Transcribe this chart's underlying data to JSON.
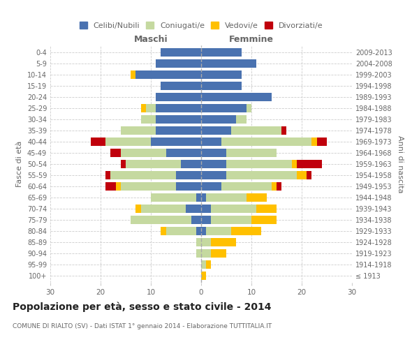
{
  "age_groups": [
    "100+",
    "95-99",
    "90-94",
    "85-89",
    "80-84",
    "75-79",
    "70-74",
    "65-69",
    "60-64",
    "55-59",
    "50-54",
    "45-49",
    "40-44",
    "35-39",
    "30-34",
    "25-29",
    "20-24",
    "15-19",
    "10-14",
    "5-9",
    "0-4"
  ],
  "birth_years": [
    "≤ 1913",
    "1914-1918",
    "1919-1923",
    "1924-1928",
    "1929-1933",
    "1934-1938",
    "1939-1943",
    "1944-1948",
    "1949-1953",
    "1954-1958",
    "1959-1963",
    "1964-1968",
    "1969-1973",
    "1974-1978",
    "1979-1983",
    "1984-1988",
    "1989-1993",
    "1994-1998",
    "1999-2003",
    "2004-2008",
    "2009-2013"
  ],
  "maschi": {
    "celibi": [
      0,
      0,
      0,
      0,
      1,
      2,
      3,
      1,
      5,
      5,
      4,
      7,
      10,
      9,
      9,
      9,
      9,
      8,
      13,
      9,
      8
    ],
    "coniugati": [
      0,
      0,
      1,
      1,
      6,
      12,
      9,
      9,
      11,
      13,
      11,
      9,
      9,
      7,
      3,
      2,
      0,
      0,
      0,
      0,
      0
    ],
    "vedovi": [
      0,
      0,
      0,
      0,
      1,
      0,
      1,
      0,
      1,
      0,
      0,
      0,
      0,
      0,
      0,
      1,
      0,
      0,
      1,
      0,
      0
    ],
    "divorziati": [
      0,
      0,
      0,
      0,
      0,
      0,
      0,
      0,
      2,
      1,
      1,
      2,
      3,
      0,
      0,
      0,
      0,
      0,
      0,
      0,
      0
    ]
  },
  "femmine": {
    "nubili": [
      0,
      0,
      0,
      0,
      1,
      2,
      2,
      1,
      4,
      5,
      5,
      5,
      4,
      6,
      7,
      9,
      14,
      8,
      8,
      11,
      8
    ],
    "coniugate": [
      0,
      1,
      2,
      2,
      5,
      8,
      9,
      8,
      10,
      14,
      13,
      10,
      18,
      10,
      2,
      1,
      0,
      0,
      0,
      0,
      0
    ],
    "vedove": [
      1,
      1,
      3,
      5,
      6,
      5,
      4,
      4,
      1,
      2,
      1,
      0,
      1,
      0,
      0,
      0,
      0,
      0,
      0,
      0,
      0
    ],
    "divorziate": [
      0,
      0,
      0,
      0,
      0,
      0,
      0,
      0,
      1,
      1,
      5,
      0,
      2,
      1,
      0,
      0,
      0,
      0,
      0,
      0,
      0
    ]
  },
  "colors": {
    "celibi": "#4a72b0",
    "coniugati": "#c5d9a0",
    "vedovi": "#ffc000",
    "divorziati": "#c0000c"
  },
  "xlim": 30,
  "title": "Popolazione per età, sesso e stato civile - 2014",
  "subtitle": "COMUNE DI RIALTO (SV) - Dati ISTAT 1° gennaio 2014 - Elaborazione TUTTITALIA.IT",
  "ylabel": "Fasce di età",
  "ylabel_right": "Anni di nascita",
  "legend_labels": [
    "Celibi/Nubili",
    "Coniugati/e",
    "Vedovi/e",
    "Divorziati/e"
  ],
  "maschi_label": "Maschi",
  "femmine_label": "Femmine",
  "background_color": "#ffffff",
  "grid_color": "#cccccc",
  "text_color": "#666666"
}
